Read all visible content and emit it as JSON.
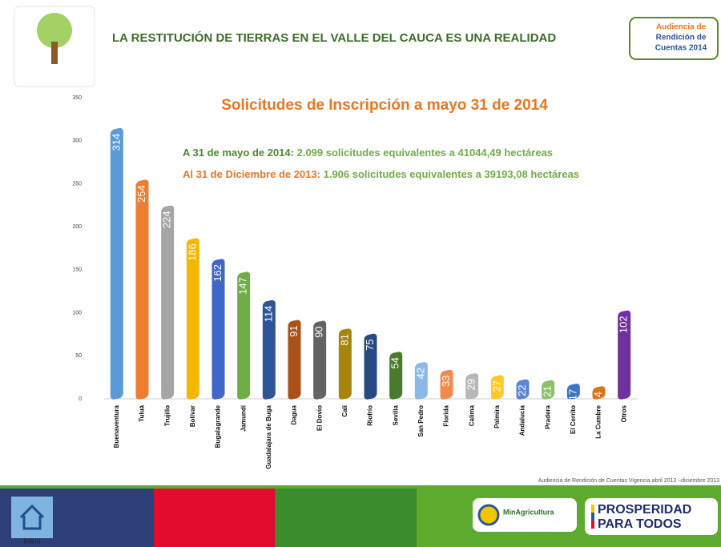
{
  "header": {
    "title": "LA RESTITUCIÓN DE TIERRAS EN EL VALLE DEL CAUCA ES UNA REALIDAD",
    "badge": [
      "Audiencia de",
      "Rendición de",
      "Cuentas 2014"
    ]
  },
  "chart_data": {
    "type": "bar",
    "title": "Solicitudes de Inscripción a mayo 31 de 2014",
    "annotations": [
      {
        "lead": "A 31 de mayo de 2014:",
        "text": "2.099 solicitudes  equivalentes  a 41044,49  hectáreas"
      },
      {
        "lead": "Al 31 de Diciembre de 2013:",
        "text": "1.906 solicitudes  equivalentes  a 39193,08 hectáreas"
      }
    ],
    "categories": [
      "Buenaventura",
      "Tuluá",
      "Trujillo",
      "Bolívar",
      "Bugalagrande",
      "Jamundí",
      "Guadalajara de Buga",
      "Dagua",
      "El Dovio",
      "Cali",
      "Riofrío",
      "Sevilla",
      "San Pedro",
      "Florida",
      "Calima",
      "Palmira",
      "Andalucía",
      "Pradera",
      "El Cerrito",
      "La Cumbre",
      "Otros"
    ],
    "values": [
      314,
      254,
      224,
      186,
      162,
      147,
      114,
      91,
      90,
      81,
      75,
      54,
      42,
      33,
      29,
      27,
      22,
      21,
      17,
      14,
      102
    ],
    "colors": [
      "#5b9bd5",
      "#ed7d31",
      "#a5a5a5",
      "#f5b800",
      "#3f67c8",
      "#70ad47",
      "#2e5597",
      "#a8521a",
      "#636363",
      "#a6850a",
      "#274a85",
      "#4a7a2c",
      "#8cb8e6",
      "#f08b4f",
      "#b7b7b7",
      "#ffca28",
      "#5b85d6",
      "#8cc168",
      "#3b75c4",
      "#d9731f",
      "#7030a0"
    ],
    "ylim": [
      0,
      350
    ],
    "yticks": [
      0,
      50,
      100,
      150,
      200,
      250,
      300,
      350
    ],
    "grid": false
  },
  "footer": {
    "note": "Audiencia  de Rendición  de Cuentas Vigencia abril 2013 –diciembre 2013",
    "home": "Inicio",
    "ministry": "MinAgricultura",
    "slogan": [
      "PROSPERIDAD",
      "PARA TODOS"
    ]
  }
}
